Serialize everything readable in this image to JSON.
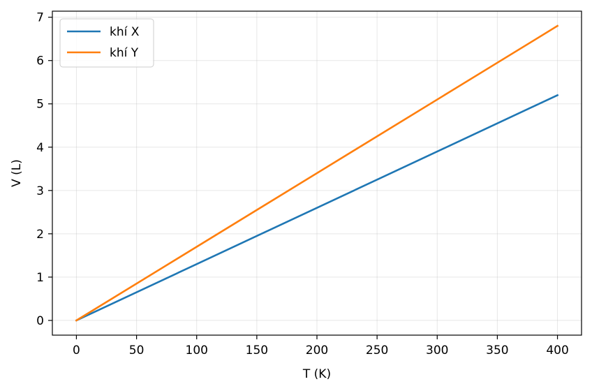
{
  "chart_data": {
    "type": "line",
    "title": "",
    "xlabel": "T (K)",
    "ylabel": "V (L)",
    "xlim": [
      -20,
      420
    ],
    "ylim": [
      -0.34,
      7.14
    ],
    "xticks": [
      0,
      50,
      100,
      150,
      200,
      250,
      300,
      350,
      400
    ],
    "yticks": [
      0,
      1,
      2,
      3,
      4,
      5,
      6,
      7
    ],
    "grid": true,
    "legend_position": "upper-left",
    "series": [
      {
        "name": "khí X",
        "color": "#1f77b4",
        "x": [
          0,
          400
        ],
        "y": [
          0,
          5.2
        ]
      },
      {
        "name": "khí Y",
        "color": "#ff7f0e",
        "x": [
          0,
          400
        ],
        "y": [
          0,
          6.8
        ]
      }
    ]
  }
}
